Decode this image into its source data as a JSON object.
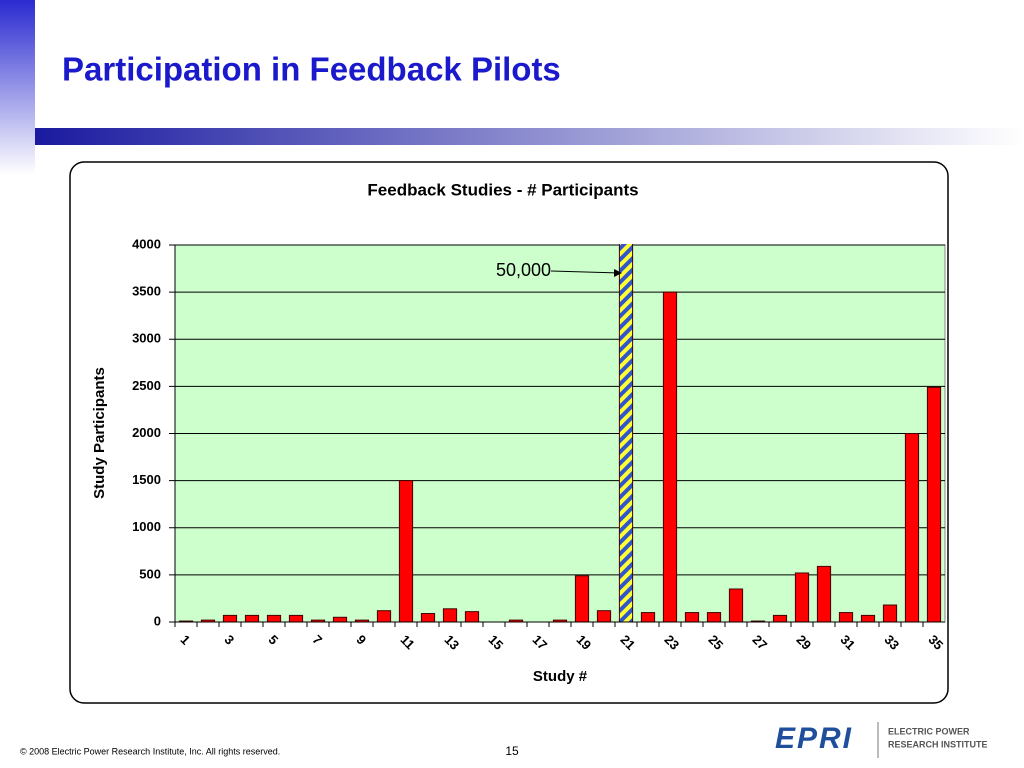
{
  "slide": {
    "title": "Participation in Feedback Pilots",
    "footer": "© 2008 Electric Power Research Institute, Inc. All rights reserved.",
    "page": "15",
    "logo": "EPRI",
    "logo_line1": "ELECTRIC POWER",
    "logo_line2": "RESEARCH INSTITUTE"
  },
  "chart_data": {
    "type": "bar",
    "title": "Feedback Studies - # Participants",
    "x_label": "Study #",
    "y_label": "Study Participants",
    "categories": [
      "1",
      null,
      "3",
      null,
      "5",
      null,
      "7",
      null,
      "9",
      null,
      "11",
      null,
      "13",
      null,
      "15",
      null,
      "17",
      null,
      "19",
      null,
      "21",
      null,
      "23",
      null,
      "25",
      null,
      "27",
      null,
      "29",
      null,
      "31",
      null,
      "33",
      null,
      "35"
    ],
    "values": [
      10,
      20,
      70,
      70,
      70,
      70,
      20,
      50,
      20,
      120,
      1500,
      90,
      140,
      110,
      0,
      20,
      0,
      20,
      490,
      120,
      50000,
      100,
      3500,
      100,
      100,
      350,
      10,
      70,
      520,
      590,
      100,
      70,
      180,
      2000,
      2490
    ],
    "value_labels": [
      null,
      null,
      null,
      null,
      null,
      null,
      null,
      null,
      null,
      null,
      null,
      null,
      null,
      null,
      null,
      null,
      null,
      null,
      null,
      null,
      "50,000",
      null,
      null,
      null,
      null,
      null,
      null,
      null,
      null,
      null,
      null,
      null,
      null,
      null,
      null
    ],
    "color": "#ff0000",
    "ylim": [
      0,
      4000
    ],
    "yticks": [
      0,
      500,
      1000,
      1500,
      2000,
      2500,
      3000,
      3500,
      4000
    ],
    "grid": true
  }
}
